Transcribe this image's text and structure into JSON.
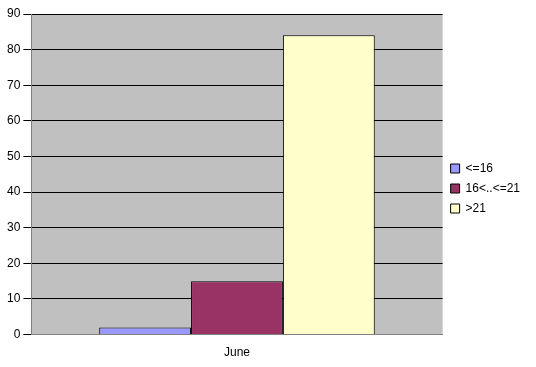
{
  "chart_data": {
    "type": "bar",
    "categories": [
      "June"
    ],
    "series": [
      {
        "name": "<=16",
        "color": "#9999ff",
        "values": [
          2
        ]
      },
      {
        "name": "16<..<=21",
        "color": "#993366",
        "values": [
          15
        ]
      },
      {
        "name": ">21",
        "color": "#ffffcc",
        "values": [
          84
        ]
      }
    ],
    "ylim": [
      0,
      90
    ],
    "yticks": [
      0,
      10,
      20,
      30,
      40,
      50,
      60,
      70,
      80,
      90
    ],
    "grid": true,
    "legend": "right"
  }
}
